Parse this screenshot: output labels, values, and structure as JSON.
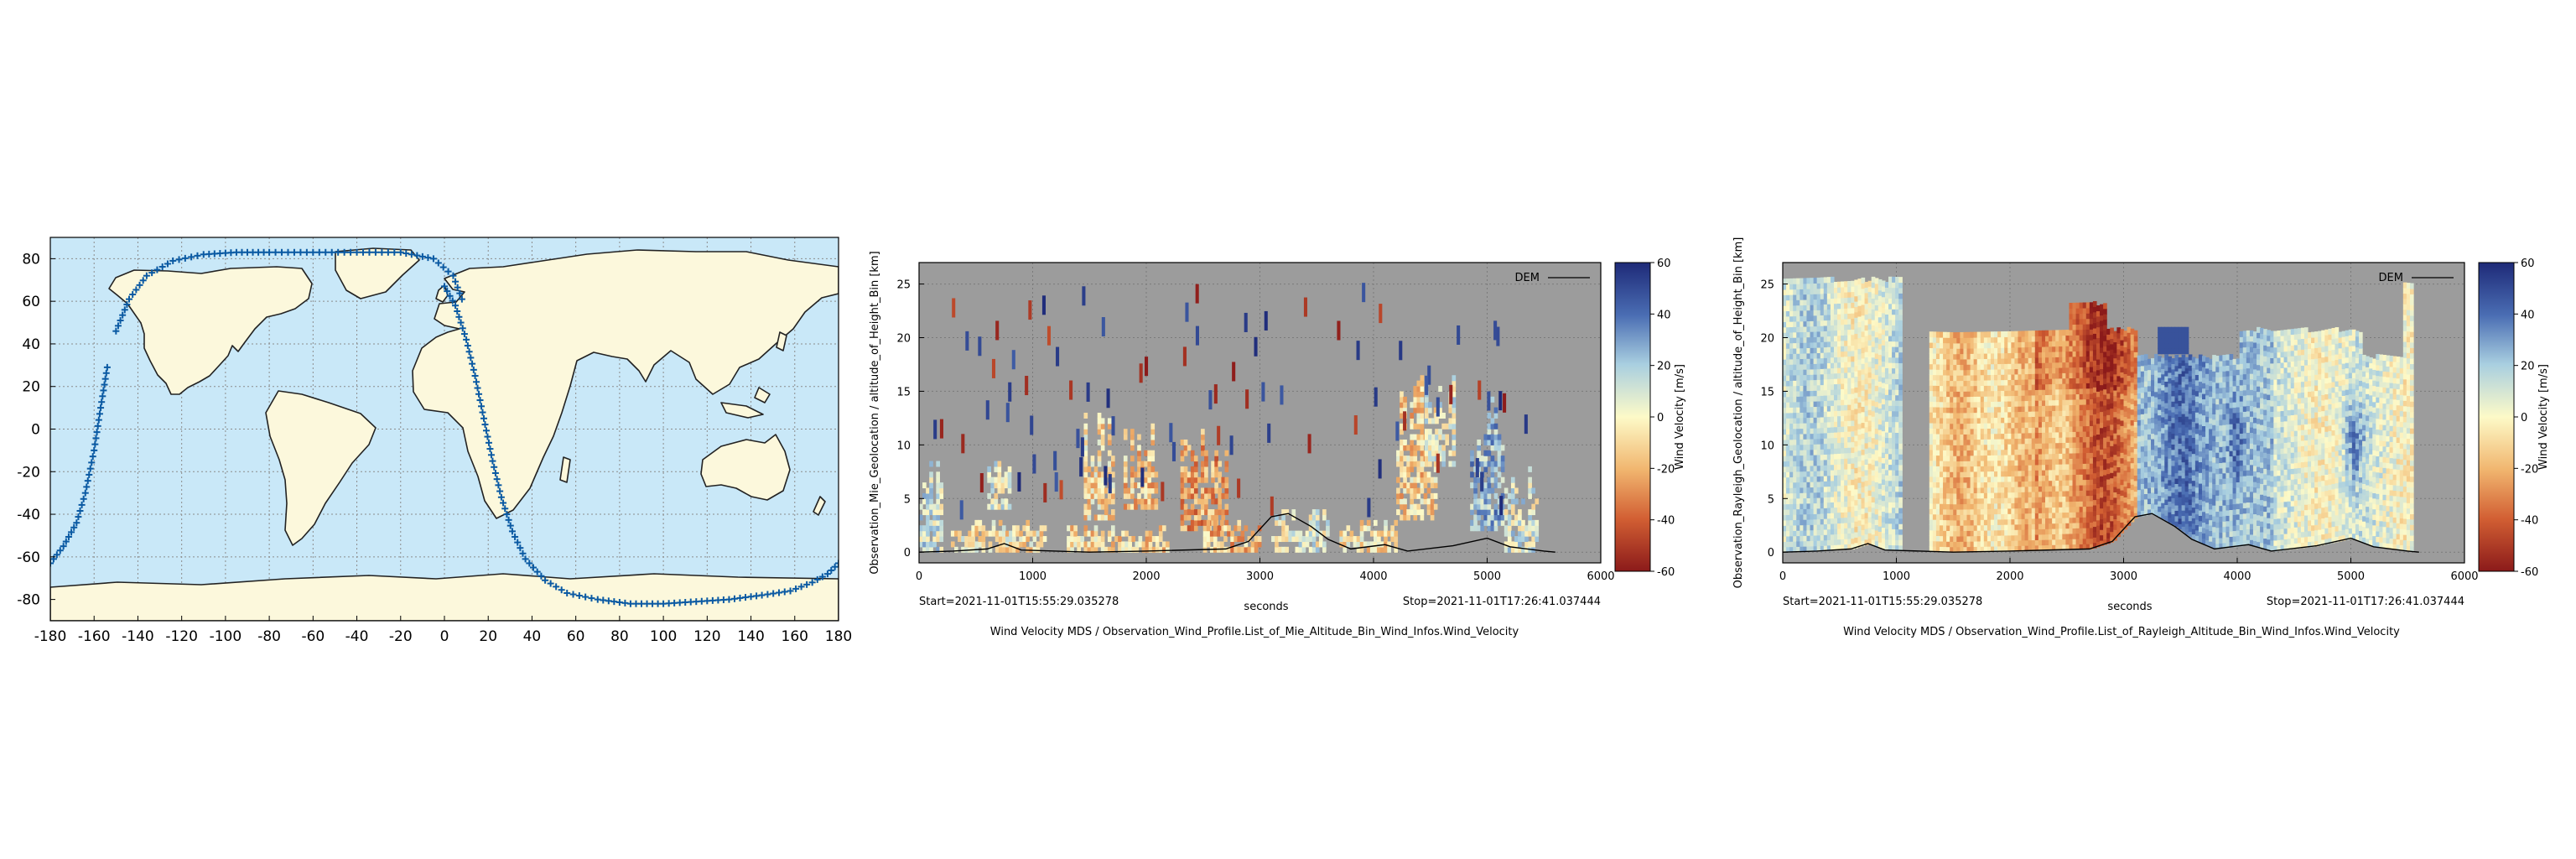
{
  "chart_data": [
    {
      "type": "scatter",
      "title": "",
      "xlabel": "",
      "ylabel": "",
      "xlim": [
        -180,
        180
      ],
      "ylim": [
        -90,
        90
      ],
      "x_ticks": [
        -180,
        -160,
        -140,
        -120,
        -100,
        -80,
        -60,
        -40,
        -20,
        0,
        20,
        40,
        60,
        80,
        100,
        120,
        140,
        160,
        180
      ],
      "y_ticks": [
        -80,
        -60,
        -40,
        -20,
        0,
        20,
        40,
        60,
        80
      ],
      "grid": true,
      "series": [
        {
          "color": "#0b5aa3",
          "segments": [
            [
              [
                -180,
                -63
              ],
              [
                -174,
                -55
              ],
              [
                -168,
                -44
              ],
              [
                -164,
                -30
              ],
              [
                -160,
                -10
              ],
              [
                -157,
                10
              ],
              [
                -154,
                29
              ]
            ],
            [
              [
                -150,
                46
              ],
              [
                -144,
                61
              ],
              [
                -136,
                72
              ],
              [
                -124,
                79
              ],
              [
                -110,
                82
              ],
              [
                -95,
                83
              ],
              [
                -80,
                83
              ],
              [
                -60,
                83
              ],
              [
                -40,
                83
              ],
              [
                -20,
                83
              ],
              [
                -5,
                80
              ],
              [
                4,
                72
              ],
              [
                8,
                61
              ]
            ],
            [
              [
                0,
                67
              ],
              [
                5,
                58
              ],
              [
                10,
                42
              ],
              [
                14,
                25
              ],
              [
                18,
                5
              ],
              [
                22,
                -15
              ],
              [
                26,
                -32
              ],
              [
                31,
                -48
              ],
              [
                37,
                -61
              ],
              [
                46,
                -71
              ],
              [
                56,
                -77
              ],
              [
                70,
                -80
              ],
              [
                85,
                -82
              ],
              [
                100,
                -82
              ],
              [
                115,
                -81
              ],
              [
                130,
                -80
              ],
              [
                145,
                -78
              ],
              [
                158,
                -76
              ],
              [
                168,
                -72
              ],
              [
                175,
                -68
              ],
              [
                180,
                -63
              ]
            ]
          ]
        }
      ]
    },
    {
      "type": "heatmap",
      "title": "Wind Velocity MDS / Observation_Wind_Profile.List_of_Mie_Altitude_Bin_Wind_Infos.Wind_Velocity",
      "xlabel": "seconds",
      "ylabel": "Observation_Mie_Geolocation / altitude_of_Height_Bin [km]",
      "xlim": [
        0,
        6000
      ],
      "ylim": [
        -1,
        27
      ],
      "x_ticks": [
        0,
        1000,
        2000,
        3000,
        4000,
        5000,
        6000
      ],
      "y_ticks": [
        0,
        5,
        10,
        15,
        20,
        25
      ],
      "start_label": "Start=2021-11-01T15:55:29.035278",
      "stop_label": "Stop=2021-11-01T17:26:41.037444",
      "legend": [
        "DEM"
      ],
      "colorbar": {
        "label": "Wind Velocity [m/s]",
        "min": -60,
        "max": 60,
        "ticks": [
          60,
          40,
          20,
          0,
          -20,
          -40,
          -60
        ]
      },
      "background": "#9c9c9c",
      "dem": [
        [
          0,
          0
        ],
        [
          300,
          0.1
        ],
        [
          600,
          0.3
        ],
        [
          750,
          0.8
        ],
        [
          900,
          0.2
        ],
        [
          1500,
          0
        ],
        [
          2000,
          0.1
        ],
        [
          2700,
          0.3
        ],
        [
          2900,
          1.0
        ],
        [
          3100,
          3.3
        ],
        [
          3250,
          3.6
        ],
        [
          3450,
          2.4
        ],
        [
          3600,
          1.2
        ],
        [
          3800,
          0.3
        ],
        [
          4100,
          0.7
        ],
        [
          4300,
          0.1
        ],
        [
          4700,
          0.6
        ],
        [
          5000,
          1.3
        ],
        [
          5200,
          0.5
        ],
        [
          5500,
          0.1
        ],
        [
          5600,
          0
        ]
      ]
    },
    {
      "type": "heatmap",
      "title": "Wind Velocity MDS / Observation_Wind_Profile.List_of_Rayleigh_Altitude_Bin_Wind_Infos.Wind_Velocity",
      "xlabel": "seconds",
      "ylabel": "Observation_Rayleigh_Geolocation / altitude_of_Height_Bin [km]",
      "xlim": [
        0,
        6000
      ],
      "ylim": [
        -1,
        27
      ],
      "x_ticks": [
        0,
        1000,
        2000,
        3000,
        4000,
        5000,
        6000
      ],
      "y_ticks": [
        0,
        5,
        10,
        15,
        20,
        25
      ],
      "start_label": "Start=2021-11-01T15:55:29.035278",
      "stop_label": "Stop=2021-11-01T17:26:41.037444",
      "legend": [
        "DEM"
      ],
      "colorbar": {
        "label": "Wind Velocity [m/s]",
        "min": -60,
        "max": 60,
        "ticks": [
          60,
          40,
          20,
          0,
          -20,
          -40,
          -60
        ]
      },
      "background": "#9c9c9c",
      "dem": [
        [
          0,
          0
        ],
        [
          300,
          0.1
        ],
        [
          600,
          0.3
        ],
        [
          750,
          0.8
        ],
        [
          900,
          0.2
        ],
        [
          1500,
          0
        ],
        [
          2000,
          0.1
        ],
        [
          2700,
          0.3
        ],
        [
          2900,
          1.0
        ],
        [
          3100,
          3.3
        ],
        [
          3250,
          3.6
        ],
        [
          3450,
          2.4
        ],
        [
          3600,
          1.2
        ],
        [
          3800,
          0.3
        ],
        [
          4100,
          0.7
        ],
        [
          4300,
          0.1
        ],
        [
          4700,
          0.6
        ],
        [
          5000,
          1.3
        ],
        [
          5200,
          0.5
        ],
        [
          5500,
          0.1
        ],
        [
          5600,
          0
        ]
      ]
    }
  ],
  "colors": {
    "ocean": "#c9e8f8",
    "land": "#fcf8dc",
    "track": "#0b5aa3"
  }
}
